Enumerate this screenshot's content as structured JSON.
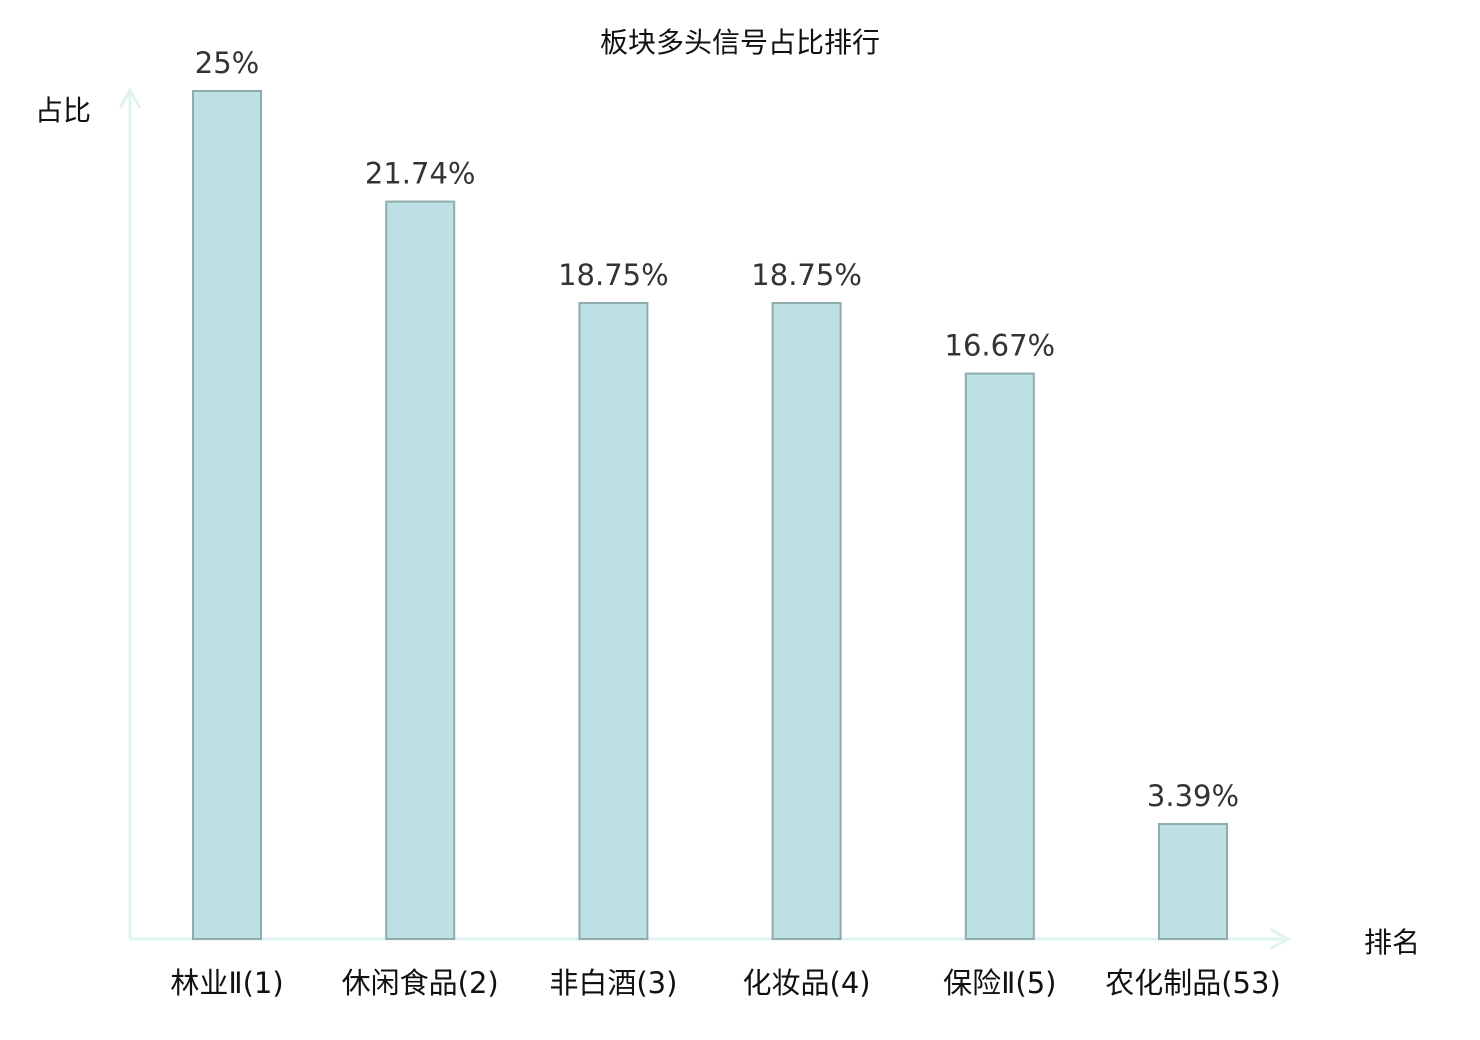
{
  "chart_data": {
    "type": "bar",
    "title": "板块多头信号占比排行",
    "ylabel": "占比",
    "xlabel": "排名",
    "categories": [
      "林业Ⅱ(1)",
      "休闲食品(2)",
      "非白酒(3)",
      "化妆品(4)",
      "保险Ⅱ(5)",
      "农化制品(53)"
    ],
    "values": [
      25,
      21.74,
      18.75,
      18.75,
      16.67,
      3.39
    ],
    "value_labels": [
      "25%",
      "21.74%",
      "18.75%",
      "18.75%",
      "16.67%",
      "3.39%"
    ],
    "highlight_index": 5,
    "ylim": [
      0,
      25
    ],
    "grid": false,
    "colors": {
      "bar_fill": "#bce0e3",
      "bar_stroke": "#8fabab",
      "axis": "#dff3f1",
      "highlight_text": "#e01010",
      "label_text": "#333333"
    }
  }
}
